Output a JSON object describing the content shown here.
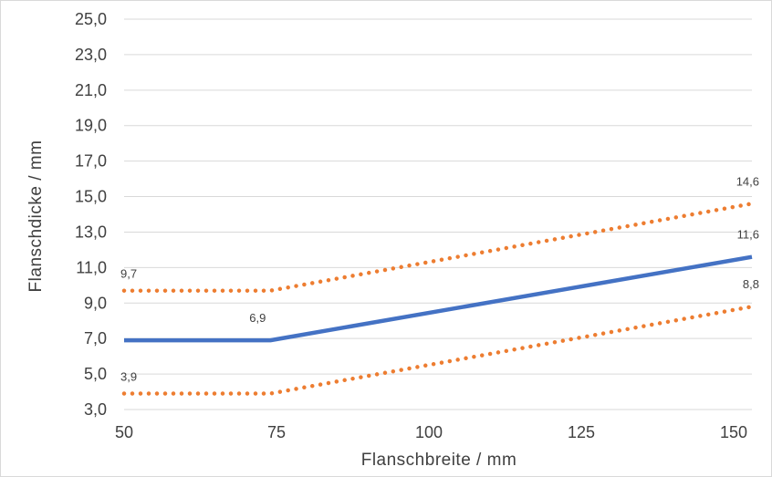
{
  "chart_data": {
    "type": "line",
    "xlabel": "Flanschbreite / mm",
    "ylabel": "Flanschdicke / mm",
    "xlim": [
      50,
      153
    ],
    "ylim": [
      3.0,
      25.0
    ],
    "x_ticks": [
      "50",
      "75",
      "100",
      "125",
      "150"
    ],
    "x_tick_values": [
      50,
      75,
      100,
      125,
      150
    ],
    "y_ticks": [
      "3,0",
      "5,0",
      "7,0",
      "9,0",
      "11,0",
      "13,0",
      "15,0",
      "17,0",
      "19,0",
      "21,0",
      "23,0",
      "25,0"
    ],
    "y_tick_values": [
      3,
      5,
      7,
      9,
      11,
      13,
      15,
      17,
      19,
      21,
      23,
      25
    ],
    "grid": true,
    "series": [
      {
        "style": "solid",
        "color": "#4472c4",
        "points": [
          [
            50,
            6.9
          ],
          [
            74,
            6.9
          ],
          [
            153,
            11.6
          ]
        ],
        "labels": [
          {
            "x": 74,
            "y": 6.9,
            "text": "6,9"
          },
          {
            "x": 153,
            "y": 11.6,
            "text": "11,6"
          }
        ]
      },
      {
        "style": "dotted",
        "color": "#ed7d31",
        "points": [
          [
            50,
            9.7
          ],
          [
            74,
            9.7
          ],
          [
            153,
            14.6
          ]
        ],
        "labels": [
          {
            "x": 50,
            "y": 9.7,
            "text": "9,7"
          },
          {
            "x": 153,
            "y": 14.6,
            "text": "14,6"
          }
        ]
      },
      {
        "style": "dotted",
        "color": "#ed7d31",
        "points": [
          [
            50,
            3.9
          ],
          [
            74,
            3.9
          ],
          [
            153,
            8.8
          ]
        ],
        "labels": [
          {
            "x": 50,
            "y": 3.9,
            "text": "3,9"
          },
          {
            "x": 153,
            "y": 8.8,
            "text": "8,8"
          }
        ]
      }
    ]
  }
}
